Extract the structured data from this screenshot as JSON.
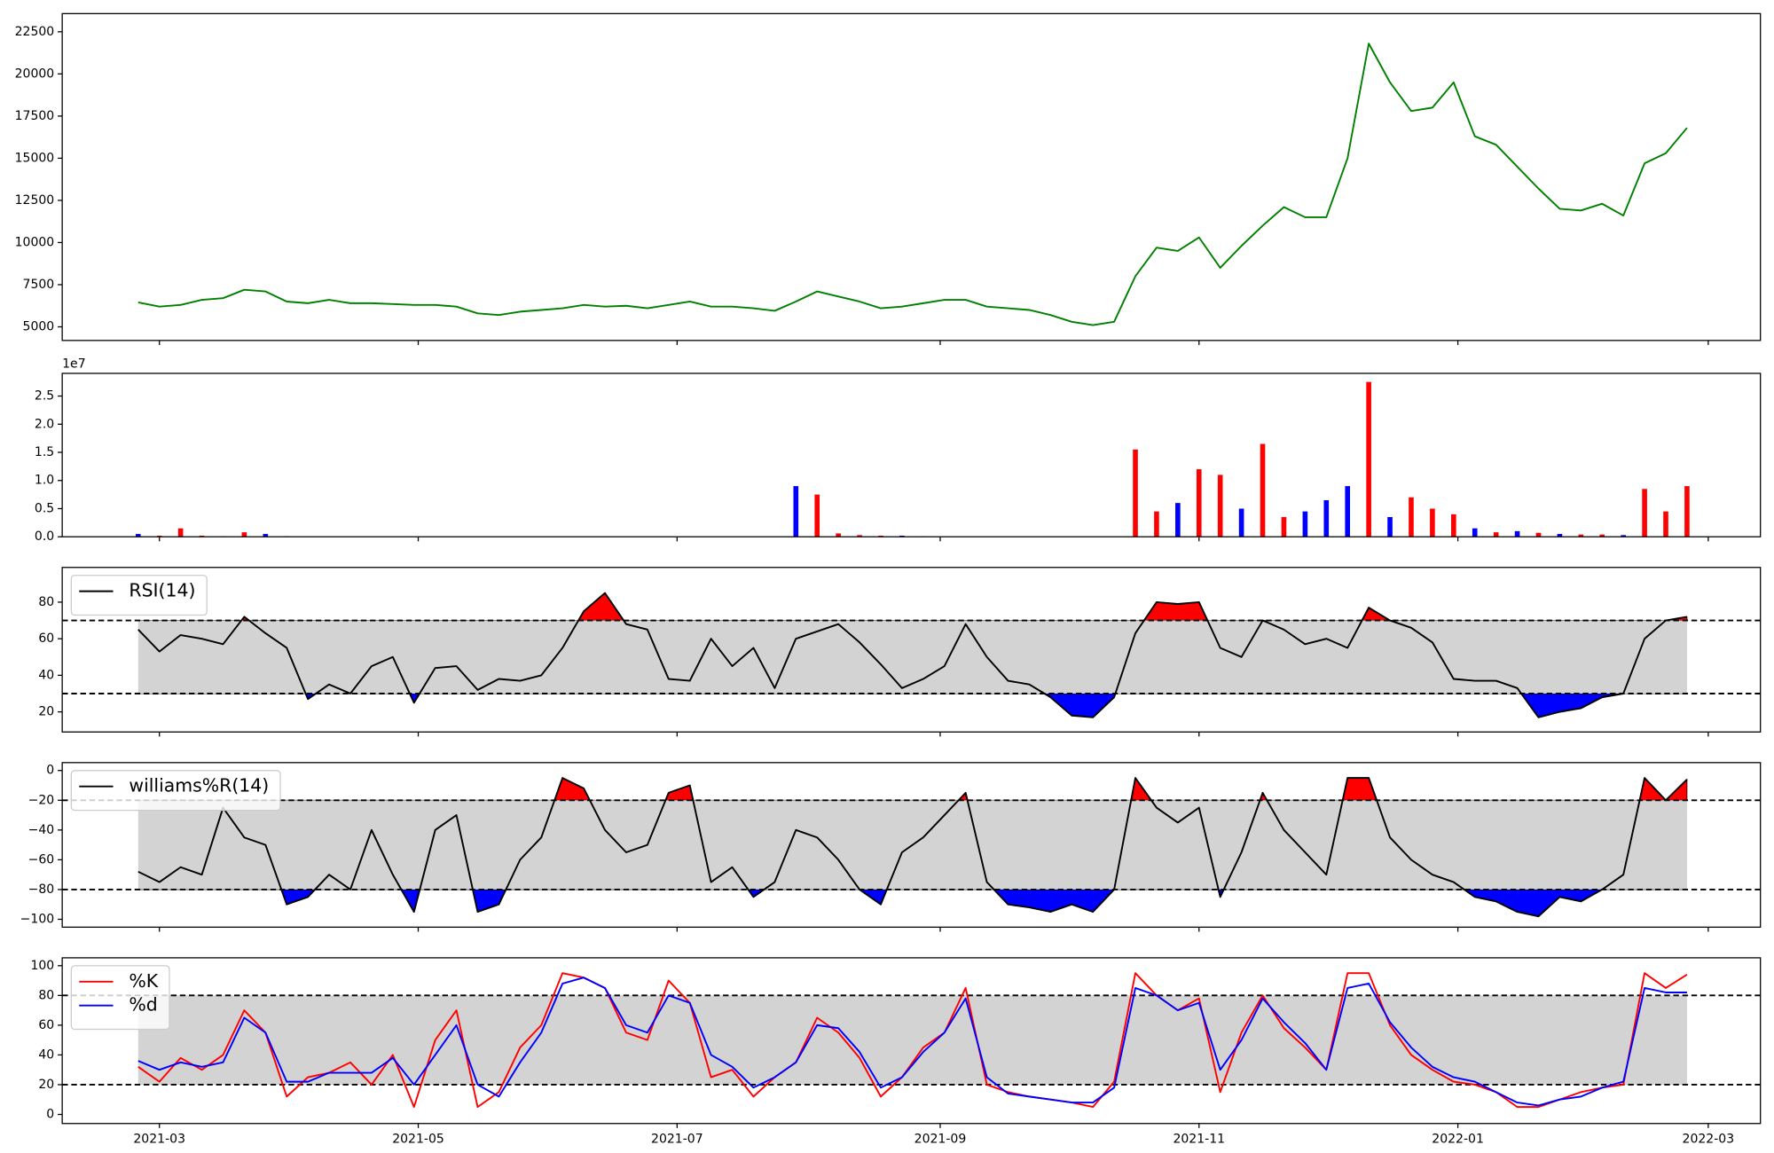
{
  "chart_data": [
    {
      "type": "line",
      "color": "green",
      "x": [
        54,
        59,
        64,
        69,
        74,
        79,
        84,
        89,
        94,
        99,
        104,
        109,
        114,
        119,
        124,
        129,
        134,
        139,
        144,
        149,
        154,
        159,
        164,
        169,
        174,
        179,
        184,
        189,
        194,
        199,
        204,
        209,
        214,
        219,
        224,
        229,
        234,
        239,
        244,
        249,
        254,
        259,
        264,
        269,
        274,
        279,
        284,
        289,
        294,
        299,
        304,
        309,
        314,
        319,
        324,
        329,
        334,
        339,
        344,
        349,
        354,
        359,
        364,
        369,
        374,
        379,
        384,
        389,
        394,
        399,
        404,
        409,
        414,
        419
      ],
      "values": [
        6450,
        6200,
        6300,
        6600,
        6700,
        7200,
        7100,
        6500,
        6400,
        6600,
        6400,
        6400,
        6350,
        6300,
        6300,
        6200,
        5800,
        5700,
        5900,
        6000,
        6100,
        6300,
        6200,
        6250,
        6100,
        6300,
        6500,
        6200,
        6200,
        6100,
        5950,
        6500,
        7100,
        6800,
        6500,
        6100,
        6200,
        6400,
        6600,
        6600,
        6200,
        6100,
        6000,
        5700,
        5300,
        5100,
        5300,
        8000,
        9700,
        9500,
        10300,
        8500,
        9800,
        11000,
        12100,
        11500,
        11500,
        15000,
        21800,
        19500,
        17800,
        18000,
        19500,
        16300,
        15800,
        14500,
        13200,
        12000,
        11900,
        12300,
        11600,
        14700,
        15300,
        16800
      ],
      "xlim": [
        36.1,
        436.3
      ],
      "ylim": [
        4192,
        23577
      ],
      "yticks": [
        5000,
        7500,
        10000,
        12500,
        15000,
        17500,
        20000,
        22500
      ]
    },
    {
      "type": "bar",
      "y_offset_label": "1e7",
      "x": [
        54,
        59,
        64,
        69,
        74,
        79,
        84,
        89,
        94,
        99,
        104,
        109,
        114,
        119,
        124,
        129,
        134,
        139,
        144,
        149,
        154,
        159,
        164,
        169,
        174,
        179,
        184,
        189,
        194,
        199,
        204,
        209,
        214,
        219,
        224,
        229,
        234,
        239,
        244,
        249,
        254,
        259,
        264,
        269,
        274,
        279,
        284,
        289,
        294,
        299,
        304,
        309,
        314,
        319,
        324,
        329,
        334,
        339,
        344,
        349,
        354,
        359,
        364,
        369,
        374,
        379,
        384,
        389,
        394,
        399,
        404,
        409,
        414,
        419
      ],
      "values": [
        500000,
        200000,
        1500000,
        200000,
        100000,
        800000,
        500000,
        100000,
        50000,
        0,
        0,
        0,
        0,
        0,
        0,
        0,
        0,
        0,
        0,
        0,
        0,
        0,
        0,
        0,
        0,
        0,
        0,
        0,
        0,
        0,
        0,
        9000000,
        7500000,
        600000,
        300000,
        200000,
        200000,
        100000,
        50000,
        0,
        0,
        0,
        0,
        0,
        0,
        0,
        0,
        15500000,
        4500000,
        6000000,
        12000000,
        11000000,
        5000000,
        16500000,
        3500000,
        4500000,
        6500000,
        9000000,
        27500000,
        3500000,
        7000000,
        5000000,
        4000000,
        1500000,
        800000,
        1000000,
        700000,
        500000,
        400000,
        400000,
        300000,
        8500000,
        4500000,
        9000000
      ],
      "colors": [
        "blue",
        "red",
        "red",
        "red",
        "red",
        "red",
        "blue",
        "blue",
        "red",
        "red",
        "red",
        "red",
        "red",
        "red",
        "red",
        "red",
        "red",
        "red",
        "red",
        "red",
        "red",
        "red",
        "red",
        "red",
        "red",
        "red",
        "red",
        "red",
        "red",
        "red",
        "red",
        "blue",
        "red",
        "red",
        "red",
        "red",
        "blue",
        "red",
        "red",
        "red",
        "red",
        "red",
        "red",
        "red",
        "red",
        "red",
        "red",
        "red",
        "red",
        "blue",
        "red",
        "red",
        "blue",
        "red",
        "red",
        "blue",
        "blue",
        "blue",
        "red",
        "blue",
        "red",
        "red",
        "red",
        "blue",
        "red",
        "blue",
        "red",
        "blue",
        "red",
        "red",
        "blue",
        "red",
        "red",
        "red"
      ],
      "xlim": [
        36.1,
        436.3
      ],
      "ylim": [
        0,
        29030000
      ],
      "yticks": [
        {
          "value": 0,
          "label": "0.0"
        },
        {
          "value": 5000000,
          "label": "0.5"
        },
        {
          "value": 10000000,
          "label": "1.0"
        },
        {
          "value": 15000000,
          "label": "1.5"
        },
        {
          "value": 20000000,
          "label": "2.0"
        },
        {
          "value": 25000000,
          "label": "2.5"
        }
      ]
    },
    {
      "type": "oscillator",
      "legend": "upper left",
      "thresholds": [
        70,
        30
      ],
      "band_color": "lightgray",
      "upper_fill": "red",
      "lower_fill": "blue",
      "x": [
        54,
        59,
        64,
        69,
        74,
        79,
        84,
        89,
        94,
        99,
        104,
        109,
        114,
        119,
        124,
        129,
        134,
        139,
        144,
        149,
        154,
        159,
        164,
        169,
        174,
        179,
        184,
        189,
        194,
        199,
        204,
        209,
        214,
        219,
        224,
        229,
        234,
        239,
        244,
        249,
        254,
        259,
        264,
        269,
        274,
        279,
        284,
        289,
        294,
        299,
        304,
        309,
        314,
        319,
        324,
        329,
        334,
        339,
        344,
        349,
        354,
        359,
        364,
        369,
        374,
        379,
        384,
        389,
        394,
        399,
        404,
        409,
        414,
        419
      ],
      "series": [
        {
          "name": "RSI(14)",
          "color": "black",
          "values": [
            65,
            53,
            62,
            60,
            57,
            72,
            63,
            55,
            27,
            35,
            30,
            45,
            50,
            25,
            44,
            45,
            32,
            38,
            37,
            40,
            55,
            75,
            85,
            68,
            65,
            38,
            37,
            60,
            45,
            55,
            33,
            60,
            64,
            68,
            58,
            46,
            33,
            38,
            45,
            68,
            50,
            37,
            35,
            28,
            18,
            17,
            28,
            63,
            80,
            79,
            80,
            55,
            50,
            70,
            65,
            57,
            60,
            55,
            77,
            70,
            66,
            58,
            38,
            37,
            37,
            33,
            17,
            20,
            22,
            28,
            30,
            60,
            70,
            72
          ]
        }
      ],
      "xlim": [
        36.1,
        436.3
      ],
      "ylim": [
        9,
        99
      ],
      "yticks": [
        20,
        40,
        60,
        80
      ]
    },
    {
      "type": "oscillator",
      "legend": "upper left",
      "thresholds": [
        -20,
        -80
      ],
      "band_color": "lightgray",
      "upper_fill": "red",
      "lower_fill": "blue",
      "x": [
        54,
        59,
        64,
        69,
        74,
        79,
        84,
        89,
        94,
        99,
        104,
        109,
        114,
        119,
        124,
        129,
        134,
        139,
        144,
        149,
        154,
        159,
        164,
        169,
        174,
        179,
        184,
        189,
        194,
        199,
        204,
        209,
        214,
        219,
        224,
        229,
        234,
        239,
        244,
        249,
        254,
        259,
        264,
        269,
        274,
        279,
        284,
        289,
        294,
        299,
        304,
        309,
        314,
        319,
        324,
        329,
        334,
        339,
        344,
        349,
        354,
        359,
        364,
        369,
        374,
        379,
        384,
        389,
        394,
        399,
        404,
        409,
        414,
        419
      ],
      "series": [
        {
          "name": "williams%R(14)",
          "color": "black",
          "values": [
            -68,
            -75,
            -65,
            -70,
            -25,
            -45,
            -50,
            -90,
            -85,
            -70,
            -80,
            -40,
            -70,
            -95,
            -40,
            -30,
            -95,
            -90,
            -60,
            -45,
            -5,
            -12,
            -40,
            -55,
            -50,
            -15,
            -10,
            -75,
            -65,
            -85,
            -75,
            -40,
            -45,
            -60,
            -80,
            -90,
            -55,
            -45,
            -30,
            -15,
            -75,
            -90,
            -92,
            -95,
            -90,
            -95,
            -80,
            -5,
            -25,
            -35,
            -25,
            -85,
            -55,
            -15,
            -40,
            -55,
            -70,
            -5,
            -5,
            -45,
            -60,
            -70,
            -75,
            -85,
            -88,
            -95,
            -98,
            -85,
            -88,
            -80,
            -70,
            -5,
            -20,
            -6
          ]
        }
      ],
      "xlim": [
        36.1,
        436.3
      ],
      "ylim": [
        -105.3,
        5.3
      ],
      "yticks": [
        0,
        {
          "value": -20,
          "label": "−20"
        },
        {
          "value": -40,
          "label": "−40"
        },
        {
          "value": -60,
          "label": "−60"
        },
        {
          "value": -80,
          "label": "−80"
        },
        {
          "value": -100,
          "label": "−100"
        }
      ]
    },
    {
      "type": "oscillator",
      "legend": "upper left",
      "thresholds": [
        80,
        20
      ],
      "band_color": "lightgray",
      "x": [
        54,
        59,
        64,
        69,
        74,
        79,
        84,
        89,
        94,
        99,
        104,
        109,
        114,
        119,
        124,
        129,
        134,
        139,
        144,
        149,
        154,
        159,
        164,
        169,
        174,
        179,
        184,
        189,
        194,
        199,
        204,
        209,
        214,
        219,
        224,
        229,
        234,
        239,
        244,
        249,
        254,
        259,
        264,
        269,
        274,
        279,
        284,
        289,
        294,
        299,
        304,
        309,
        314,
        319,
        324,
        329,
        334,
        339,
        344,
        349,
        354,
        359,
        364,
        369,
        374,
        379,
        384,
        389,
        394,
        399,
        404,
        409,
        414,
        419
      ],
      "series": [
        {
          "name": "%K",
          "color": "red",
          "values": [
            32,
            22,
            38,
            30,
            40,
            70,
            55,
            12,
            25,
            28,
            35,
            20,
            40,
            5,
            50,
            70,
            5,
            15,
            45,
            60,
            95,
            92,
            85,
            55,
            50,
            90,
            75,
            25,
            30,
            12,
            25,
            35,
            65,
            55,
            38,
            12,
            25,
            45,
            55,
            85,
            20,
            15,
            12,
            10,
            8,
            5,
            22,
            95,
            80,
            70,
            78,
            15,
            55,
            80,
            58,
            45,
            30,
            95,
            95,
            60,
            40,
            30,
            22,
            20,
            15,
            5,
            5,
            10,
            15,
            18,
            20,
            95,
            85,
            94
          ]
        },
        {
          "name": "%d",
          "color": "blue",
          "values": [
            36,
            30,
            35,
            32,
            35,
            65,
            55,
            22,
            22,
            28,
            28,
            28,
            38,
            20,
            40,
            60,
            20,
            12,
            35,
            55,
            88,
            92,
            85,
            60,
            55,
            80,
            75,
            40,
            32,
            18,
            25,
            35,
            60,
            58,
            42,
            18,
            25,
            42,
            55,
            78,
            25,
            14,
            12,
            10,
            8,
            8,
            18,
            85,
            80,
            70,
            75,
            30,
            50,
            78,
            62,
            48,
            30,
            85,
            88,
            62,
            45,
            32,
            25,
            22,
            15,
            8,
            6,
            10,
            12,
            18,
            22,
            85,
            82,
            82
          ]
        }
      ],
      "xlim": [
        36.1,
        436.3
      ],
      "ylim": [
        -6.1,
        105.3
      ],
      "yticks": [
        0,
        20,
        40,
        60,
        80,
        100
      ],
      "xticks": [
        {
          "value": 59,
          "label": "2021-03"
        },
        {
          "value": 120,
          "label": "2021-05"
        },
        {
          "value": 181,
          "label": "2021-07"
        },
        {
          "value": 243,
          "label": "2021-09"
        },
        {
          "value": 304,
          "label": "2021-11"
        },
        {
          "value": 365,
          "label": "2022-01"
        },
        {
          "value": 424,
          "label": "2022-03"
        }
      ]
    }
  ]
}
